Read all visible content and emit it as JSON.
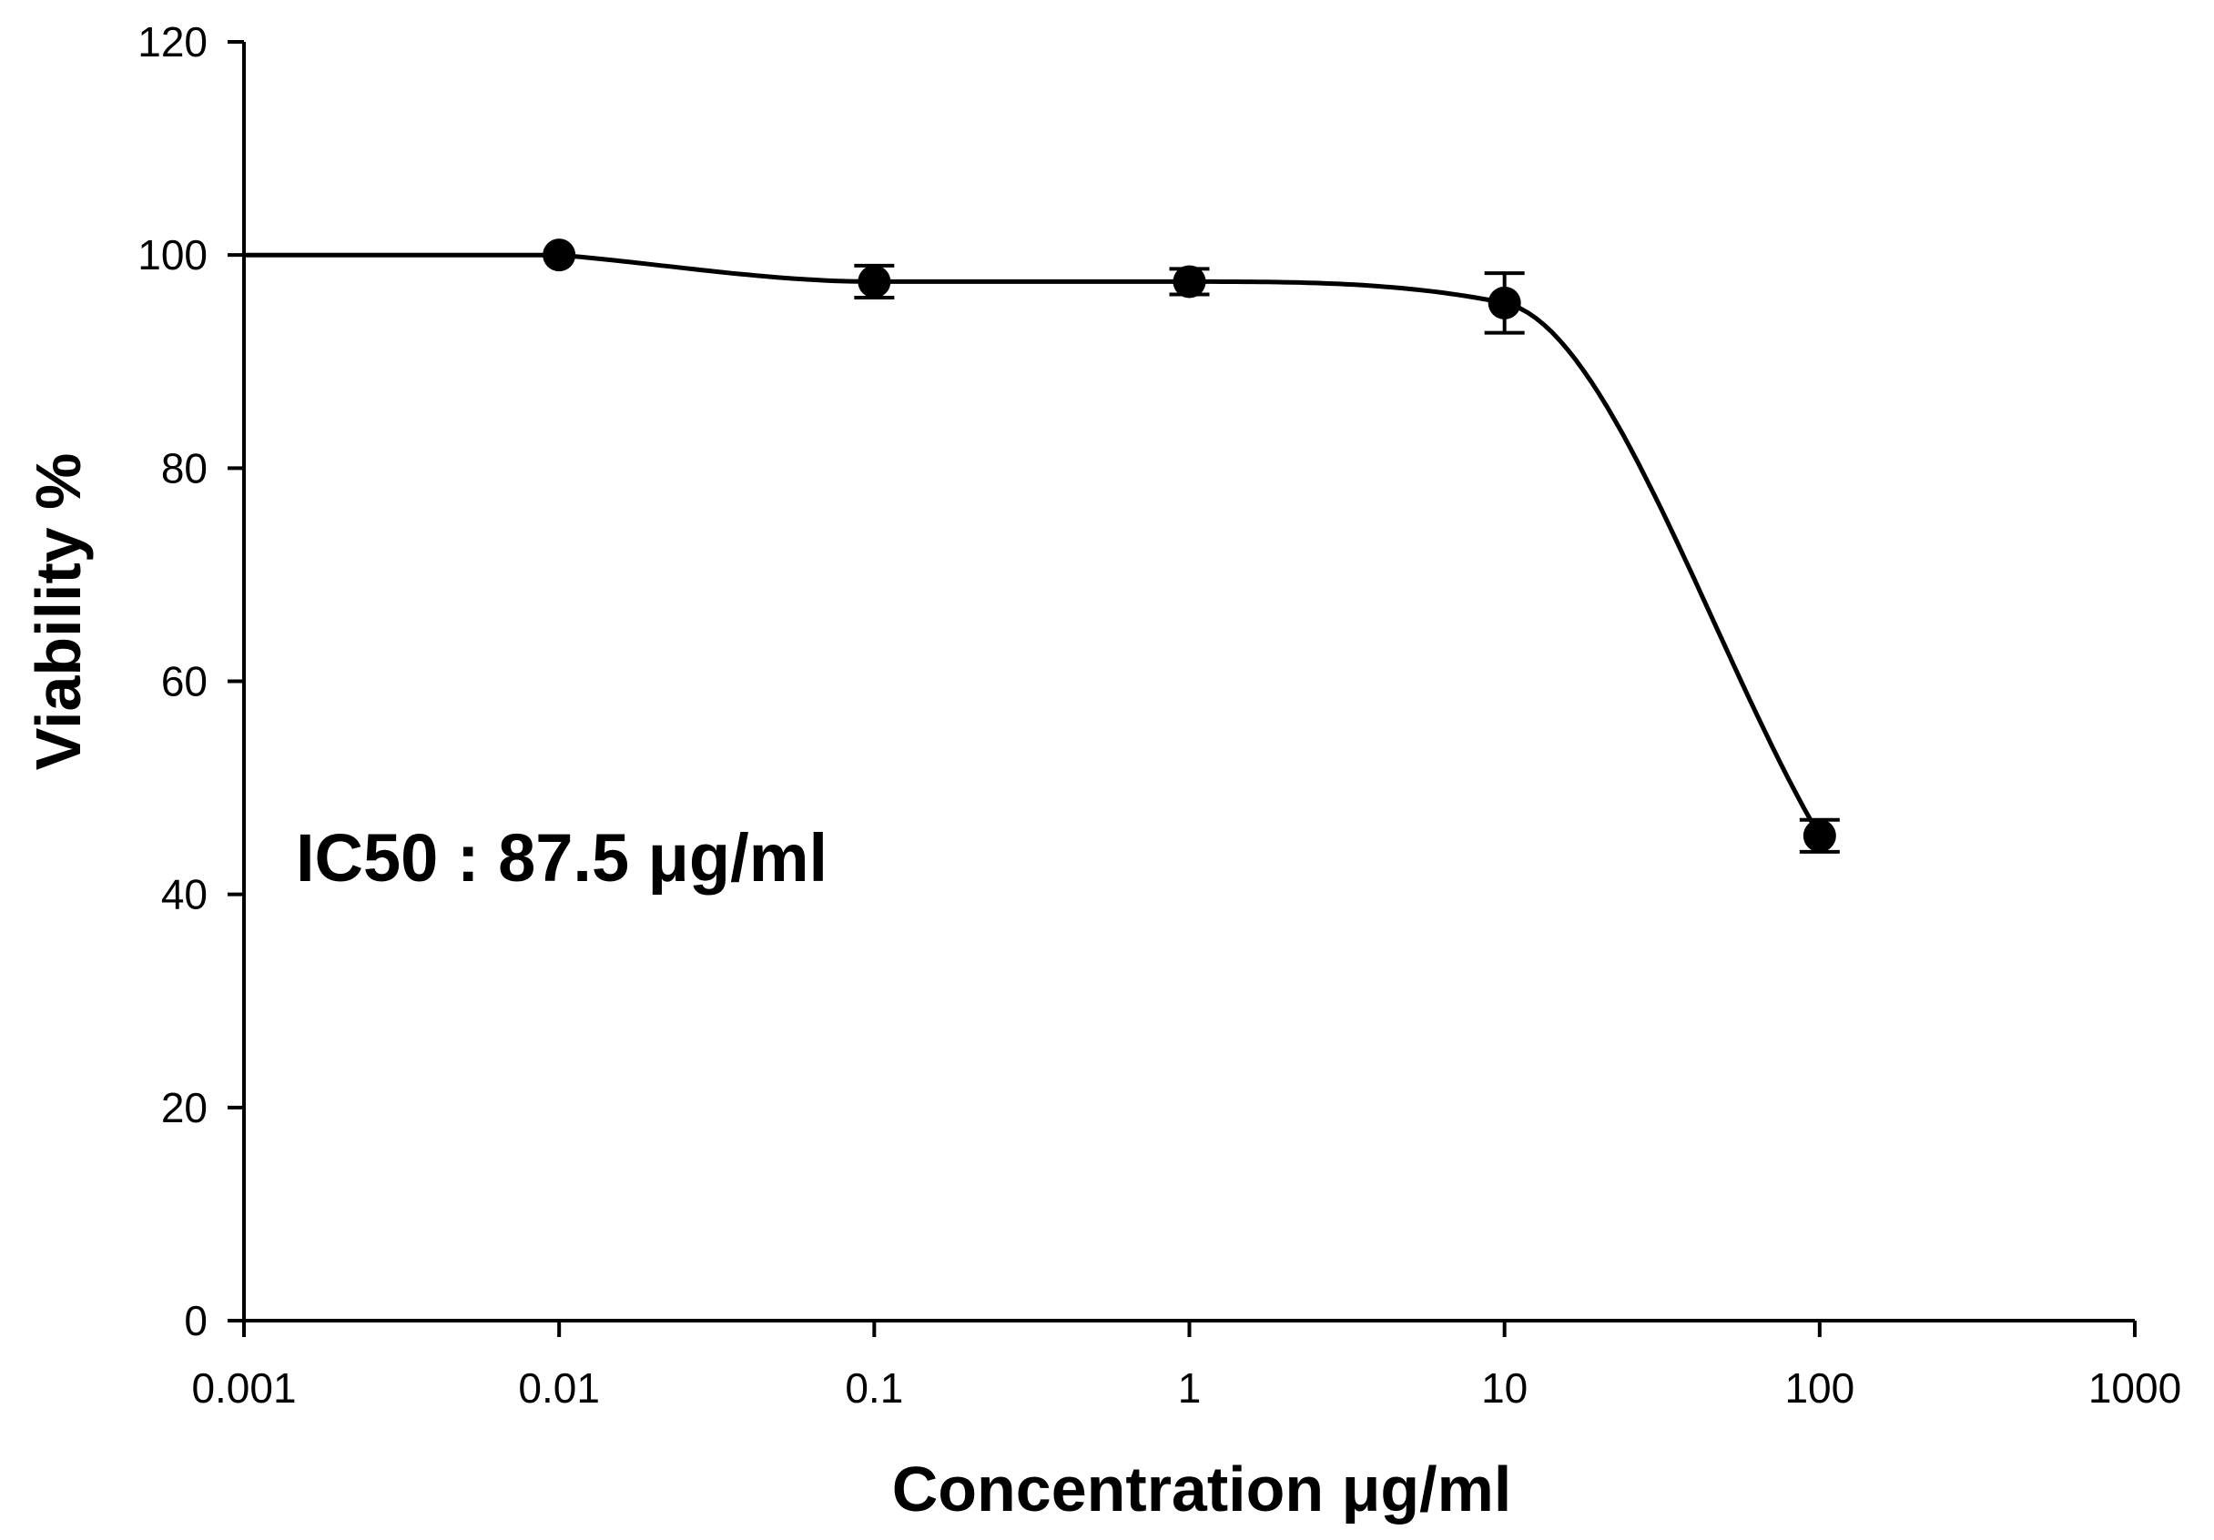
{
  "chart_data": {
    "type": "scatter",
    "title": "",
    "xlabel": "Concentration μg/ml",
    "ylabel": "Viability %",
    "x_scale": "log",
    "xlim": [
      0.001,
      1000
    ],
    "ylim": [
      0,
      120
    ],
    "x_ticks": [
      "0.001",
      "0.01",
      "0.1",
      "1",
      "10",
      "100",
      "1000"
    ],
    "y_ticks": [
      "0",
      "20",
      "40",
      "60",
      "80",
      "100",
      "120"
    ],
    "grid": false,
    "legend": "none",
    "annotation": "IC50 : 87.5 μg/ml",
    "series": [
      {
        "x": [
          0.01,
          0.1,
          1,
          10,
          100
        ],
        "y": [
          100,
          97.5,
          97.5,
          95.5,
          45.5
        ],
        "error": [
          0,
          1.5,
          1.2,
          2.8,
          1.5
        ],
        "fit": "dose-response curve",
        "color": "#000000"
      }
    ]
  }
}
